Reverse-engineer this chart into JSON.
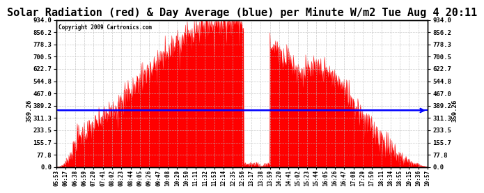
{
  "title": "Solar Radiation (red) & Day Average (blue) per Minute W/m2 Tue Aug 4 20:11",
  "copyright": "Copyright 2009 Cartronics.com",
  "day_average": 359.26,
  "y_max": 934.0,
  "y_min": 0.0,
  "y_ticks": [
    0.0,
    77.8,
    155.7,
    233.5,
    311.3,
    389.2,
    467.0,
    544.8,
    622.7,
    700.5,
    778.3,
    856.2,
    934.0
  ],
  "background_color": "#ffffff",
  "plot_bg_color": "#ffffff",
  "border_color": "#000000",
  "grid_color": "#bbbbbb",
  "bar_color": "#ff0000",
  "avg_line_color": "#0000ff",
  "title_fontsize": 11,
  "x_labels": [
    "05:53",
    "06:17",
    "06:38",
    "06:59",
    "07:20",
    "07:41",
    "08:02",
    "08:23",
    "08:44",
    "09:05",
    "09:26",
    "09:47",
    "10:08",
    "10:29",
    "10:50",
    "11:11",
    "11:32",
    "11:53",
    "12:14",
    "12:35",
    "12:56",
    "13:17",
    "13:38",
    "13:59",
    "14:20",
    "14:41",
    "15:02",
    "15:23",
    "15:44",
    "16:05",
    "16:26",
    "16:47",
    "17:08",
    "17:29",
    "17:50",
    "18:11",
    "18:34",
    "18:55",
    "19:15",
    "19:36",
    "19:57"
  ],
  "num_points": 841
}
